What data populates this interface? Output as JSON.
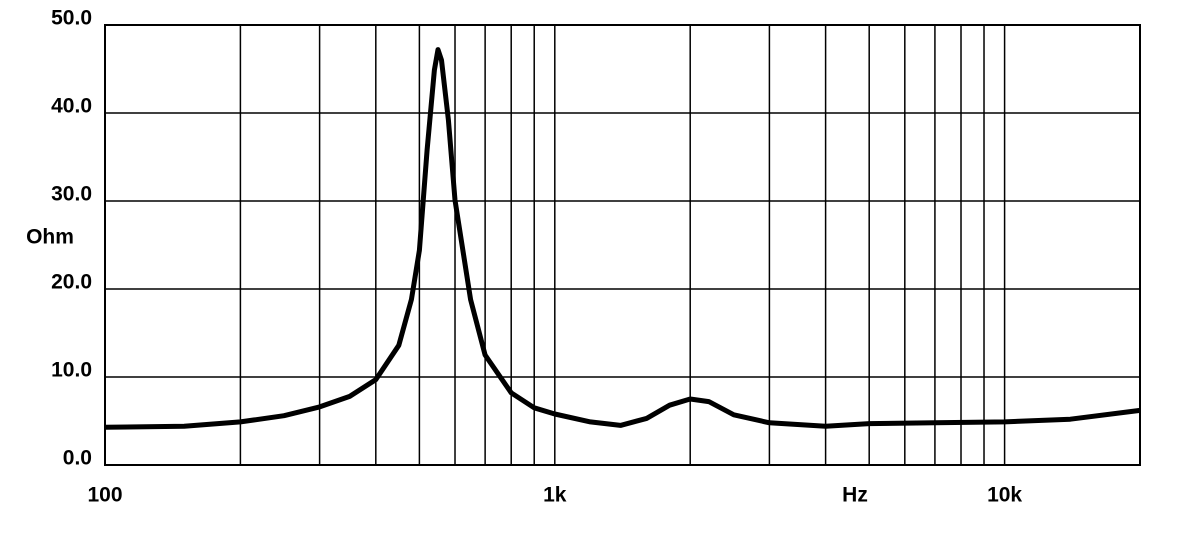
{
  "chart_data": {
    "type": "line",
    "log_x": true,
    "grid": true,
    "color": "#000000",
    "ylabel": "Ohm",
    "xlabel": "Hz",
    "x": [
      100,
      150,
      200,
      250,
      300,
      350,
      400,
      450,
      480,
      500,
      520,
      540,
      550,
      560,
      580,
      600,
      650,
      700,
      800,
      900,
      1000,
      1200,
      1400,
      1600,
      1800,
      2000,
      2200,
      2500,
      3000,
      4000,
      5000,
      7000,
      10000,
      14000,
      20000
    ],
    "values": [
      4.3,
      4.4,
      4.9,
      5.6,
      6.6,
      7.8,
      9.7,
      13.6,
      18.8,
      24.4,
      35.8,
      44.9,
      47.2,
      46,
      39.2,
      30.1,
      18.8,
      12.5,
      8.2,
      6.5,
      5.8,
      4.9,
      4.5,
      5.3,
      6.8,
      7.5,
      7.2,
      5.7,
      4.8,
      4.4,
      4.7,
      4.8,
      4.9,
      5.2,
      6.2
    ],
    "xlim": [
      100,
      20000
    ],
    "xticks": [
      {
        "value": 100,
        "label": "100"
      },
      {
        "value": 1000,
        "label": "1k"
      },
      {
        "value": 10000,
        "label": "10k"
      }
    ],
    "xgrid": [
      200,
      300,
      400,
      500,
      600,
      700,
      800,
      900,
      1000,
      2000,
      3000,
      4000,
      5000,
      6000,
      7000,
      8000,
      9000,
      10000
    ],
    "ylim": [
      0,
      50
    ],
    "yticks": [
      {
        "value": 0,
        "label": "0.0"
      },
      {
        "value": 10,
        "label": "10.0"
      },
      {
        "value": 20,
        "label": "20.0"
      },
      {
        "value": 30,
        "label": "30.0"
      },
      {
        "value": 40,
        "label": "40.0"
      },
      {
        "value": 50,
        "label": "50.0"
      }
    ]
  }
}
